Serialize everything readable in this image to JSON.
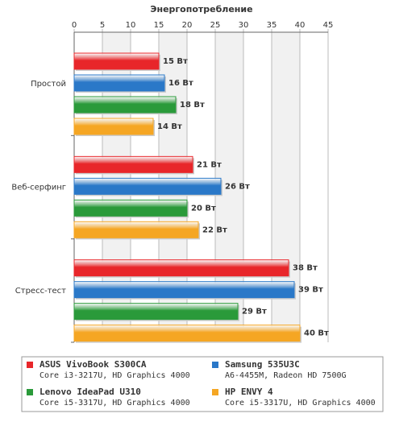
{
  "chart_data": {
    "type": "hbar",
    "title": "Энергопотребление",
    "categories": [
      "Простой",
      "Веб-серфинг",
      "Стресс-тест"
    ],
    "series": [
      {
        "name": "ASUS VivoBook S300CA",
        "description": "Core i3-3217U, HD Graphics 4000",
        "color": "#e8262a",
        "values": [
          15,
          21,
          38
        ],
        "value_labels": [
          "15 Вт",
          "21 Вт",
          "38 Вт"
        ]
      },
      {
        "name": "Samsung 535U3C",
        "description": "A6-4455M, Radeon HD 7500G",
        "color": "#2a78c8",
        "values": [
          16,
          26,
          39
        ],
        "value_labels": [
          "16 Вт",
          "26 Вт",
          "39 Вт"
        ]
      },
      {
        "name": "Lenovo IdeaPad U310",
        "description": "Core i5-3317U, HD Graphics 4000",
        "color": "#2a9a3a",
        "values": [
          18,
          20,
          29
        ],
        "value_labels": [
          "18 Вт",
          "20 Вт",
          "29 Вт"
        ]
      },
      {
        "name": "HP ENVY 4",
        "description": "Core i5-3317U, HD Graphics 4000",
        "color": "#f5a623",
        "values": [
          14,
          22,
          40
        ],
        "value_labels": [
          "14 Вт",
          "22 Вт",
          "40 Вт"
        ]
      }
    ],
    "xlim": [
      0,
      45
    ],
    "xticks": [
      0,
      5,
      10,
      15,
      20,
      25,
      30,
      35,
      40,
      45
    ],
    "grid": true
  }
}
